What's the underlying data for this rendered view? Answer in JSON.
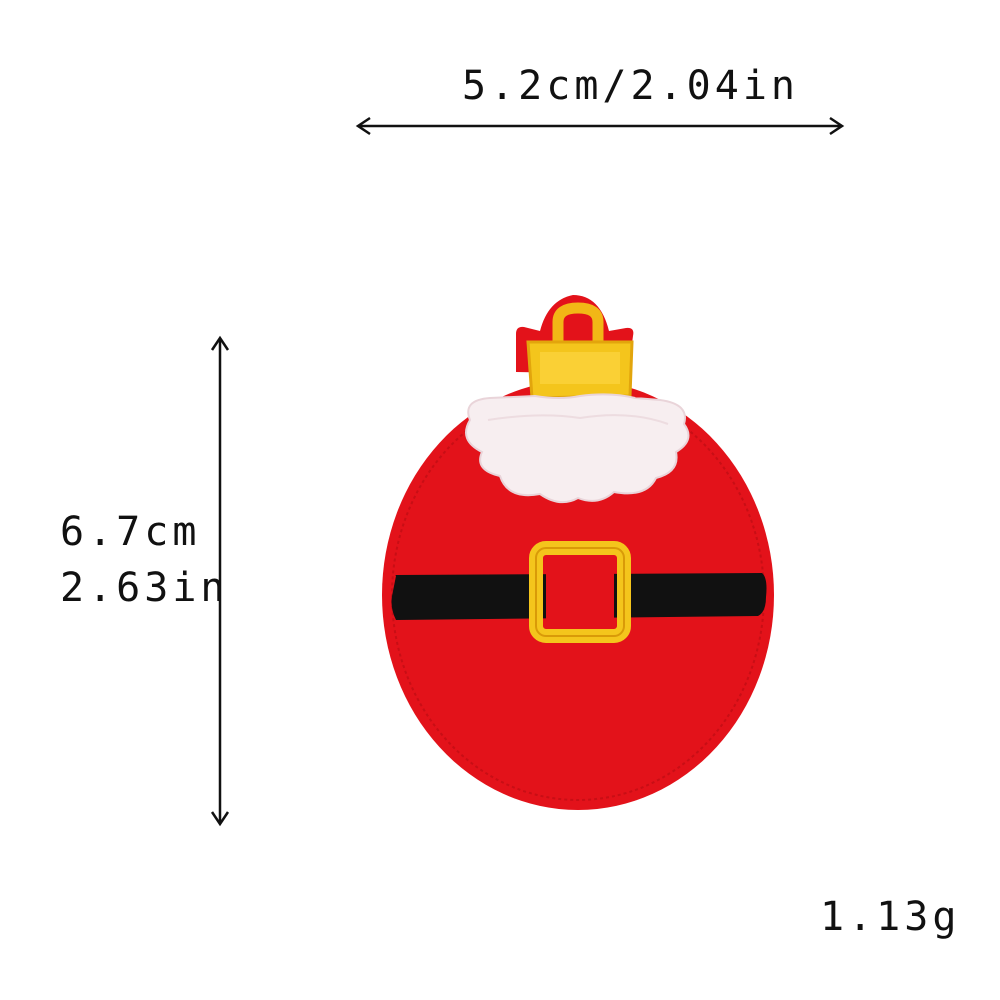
{
  "dimensions": {
    "width_label": "5.2cm/2.04in",
    "height_cm": "6.7cm",
    "height_in": "2.63in"
  },
  "weight": "1.13g",
  "product": {
    "colors": {
      "felt_red": "#e3121a",
      "stitch_red": "#c70d14",
      "belt_black": "#111111",
      "buckle_gold": "#f4c51c",
      "fur_white": "#f7eef0"
    }
  }
}
